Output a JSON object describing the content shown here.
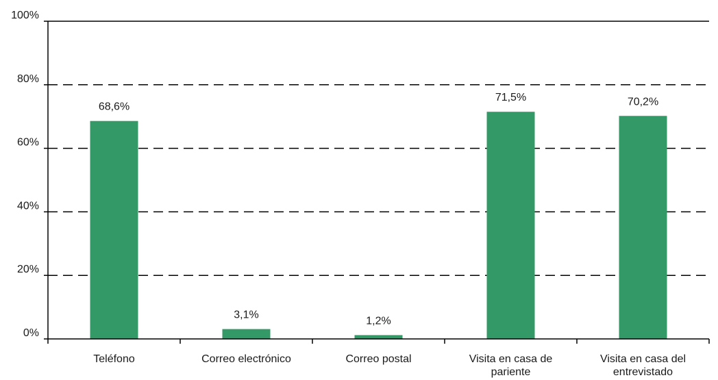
{
  "chart_data": {
    "type": "bar",
    "categories": [
      [
        "Teléfono"
      ],
      [
        "Correo electrónico"
      ],
      [
        "Correo postal"
      ],
      [
        "Visita en casa de",
        "pariente"
      ],
      [
        "Visita en casa del",
        "entrevistado"
      ]
    ],
    "values": [
      68.6,
      3.1,
      1.2,
      71.5,
      70.2
    ],
    "data_labels": [
      "68,6%",
      "3,1%",
      "1,2%",
      "71,5%",
      "70,2%"
    ],
    "y_ticks": [
      {
        "value": 0,
        "label": "0%"
      },
      {
        "value": 20,
        "label": "20%"
      },
      {
        "value": 40,
        "label": "40%"
      },
      {
        "value": 60,
        "label": "60%"
      },
      {
        "value": 80,
        "label": "80%"
      },
      {
        "value": 100,
        "label": "100%"
      }
    ],
    "ylim": [
      0,
      100
    ],
    "grid": "dashed horizontal",
    "bar_color": "#339966"
  }
}
